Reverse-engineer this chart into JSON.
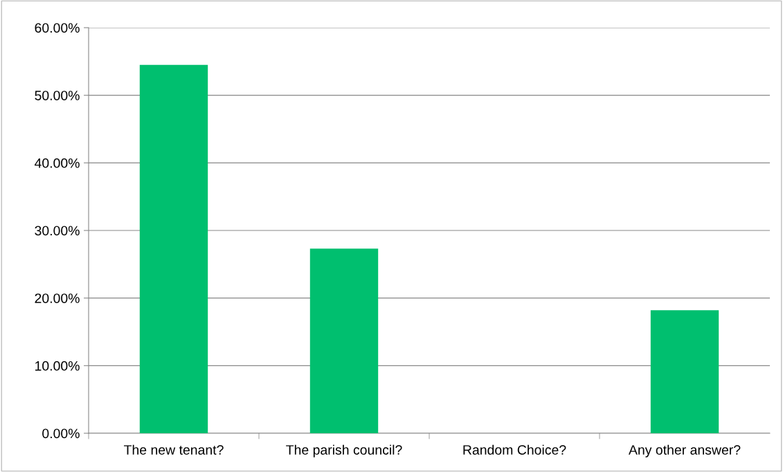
{
  "chart_data": {
    "type": "bar",
    "categories": [
      "The new tenant?",
      "The parish council?",
      "Random Choice?",
      "Any other answer?"
    ],
    "values": [
      54.5,
      27.3,
      0,
      18.2
    ],
    "color": "#00bf6f",
    "ylim": [
      0,
      60
    ],
    "yticks": [
      {
        "value": 0,
        "label": "0.00%"
      },
      {
        "value": 10,
        "label": "10.00%"
      },
      {
        "value": 20,
        "label": "20.00%"
      },
      {
        "value": 30,
        "label": "30.00%"
      },
      {
        "value": 40,
        "label": "40.00%"
      },
      {
        "value": 50,
        "label": "50.00%"
      },
      {
        "value": 60,
        "label": "60.00%"
      }
    ],
    "grid": "y"
  }
}
